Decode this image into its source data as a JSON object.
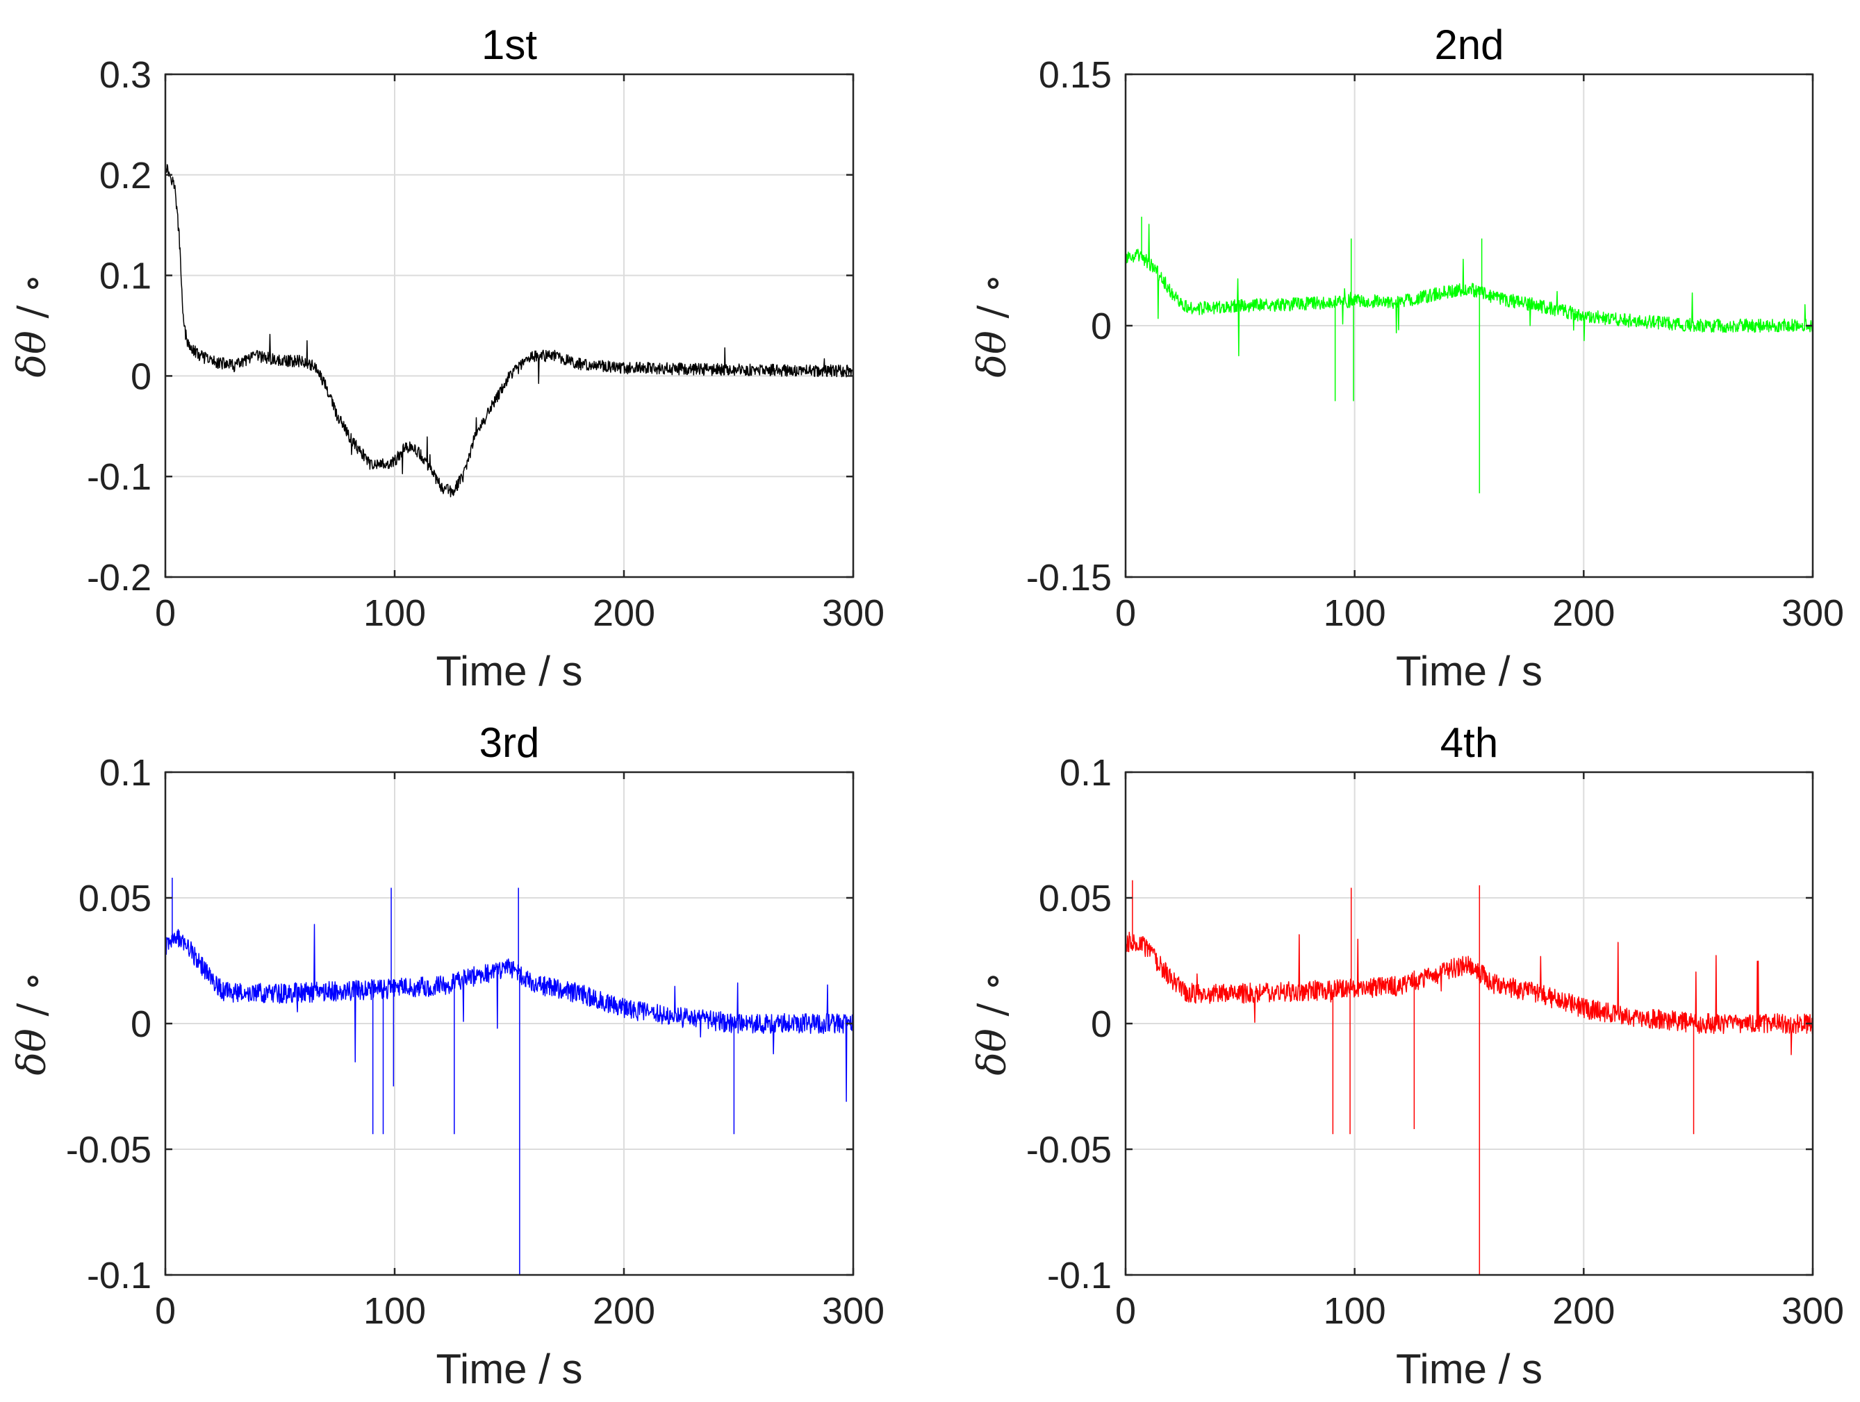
{
  "chart_data": [
    {
      "type": "line",
      "title": "1st",
      "xlabel": "Time / s",
      "ylabel": "δθ / ∘",
      "xlim": [
        0,
        300
      ],
      "ylim": [
        -0.2,
        0.3
      ],
      "xticks": [
        0,
        100,
        200,
        300
      ],
      "xtick_labels": [
        "0",
        "100",
        "200",
        "300"
      ],
      "yticks": [
        -0.2,
        -0.1,
        0,
        0.1,
        0.2,
        0.3
      ],
      "ytick_labels": [
        "-0.2",
        "-0.1",
        "0",
        "0.1",
        "0.2",
        "0.3"
      ],
      "grid": true,
      "color": "#000000",
      "noise": 0.006,
      "spike_rate": 0.01,
      "spike_scale": 0.03,
      "series": [
        {
          "name": "1st",
          "x": [
            0,
            2,
            4,
            6,
            8,
            10,
            15,
            20,
            30,
            40,
            50,
            60,
            65,
            70,
            75,
            80,
            90,
            100,
            105,
            110,
            115,
            120,
            125,
            130,
            135,
            140,
            145,
            150,
            160,
            170,
            180,
            200,
            250,
            300
          ],
          "y": [
            0.21,
            0.2,
            0.19,
            0.14,
            0.05,
            0.03,
            0.02,
            0.015,
            0.01,
            0.02,
            0.015,
            0.015,
            0.01,
            -0.01,
            -0.04,
            -0.06,
            -0.09,
            -0.085,
            -0.07,
            -0.075,
            -0.09,
            -0.11,
            -0.115,
            -0.1,
            -0.06,
            -0.04,
            -0.02,
            0.0,
            0.02,
            0.02,
            0.012,
            0.008,
            0.006,
            0.005
          ]
        }
      ]
    },
    {
      "type": "line",
      "title": "2nd",
      "xlabel": "Time / s",
      "ylabel": "δθ / ∘",
      "xlim": [
        0,
        300
      ],
      "ylim": [
        -0.15,
        0.15
      ],
      "xticks": [
        0,
        100,
        200,
        300
      ],
      "xtick_labels": [
        "0",
        "100",
        "200",
        "300"
      ],
      "yticks": [
        -0.15,
        0,
        0.15
      ],
      "ytick_labels": [
        "-0.15",
        "0",
        "0.15"
      ],
      "grid": true,
      "color": "#00ff00",
      "noise": 0.004,
      "spike_rate": 0.012,
      "spike_scale": 0.03,
      "series": [
        {
          "name": "2nd",
          "x": [
            0,
            5,
            10,
            15,
            20,
            25,
            30,
            50,
            80,
            100,
            120,
            140,
            150,
            155,
            160,
            180,
            200,
            220,
            250,
            300
          ],
          "y": [
            0.04,
            0.042,
            0.038,
            0.03,
            0.02,
            0.013,
            0.01,
            0.012,
            0.013,
            0.015,
            0.014,
            0.02,
            0.022,
            0.02,
            0.017,
            0.012,
            0.006,
            0.003,
            0.0,
            0.0
          ]
        }
      ],
      "spikes": [
        {
          "x": 154.5,
          "y": -0.1
        },
        {
          "x": 98.5,
          "y": 0.052
        },
        {
          "x": 99.5,
          "y": -0.045
        },
        {
          "x": 155.5,
          "y": 0.052
        },
        {
          "x": 91.5,
          "y": -0.045
        },
        {
          "x": 7,
          "y": 0.065
        }
      ]
    },
    {
      "type": "line",
      "title": "3rd",
      "xlabel": "Time / s",
      "ylabel": "δθ / ∘",
      "xlim": [
        0,
        300
      ],
      "ylim": [
        -0.1,
        0.1
      ],
      "xticks": [
        0,
        100,
        200,
        300
      ],
      "xtick_labels": [
        "0",
        "100",
        "200",
        "300"
      ],
      "yticks": [
        -0.1,
        -0.05,
        0,
        0.05,
        0.1
      ],
      "ytick_labels": [
        "-0.1",
        "-0.05",
        "0",
        "0.05",
        "0.1"
      ],
      "grid": true,
      "color": "#0000ff",
      "noise": 0.004,
      "spike_rate": 0.012,
      "spike_scale": 0.03,
      "series": [
        {
          "name": "3rd",
          "x": [
            0,
            5,
            10,
            15,
            20,
            25,
            30,
            50,
            80,
            100,
            120,
            140,
            150,
            155,
            160,
            180,
            200,
            220,
            250,
            300
          ],
          "y": [
            0.033,
            0.034,
            0.03,
            0.024,
            0.018,
            0.013,
            0.012,
            0.012,
            0.013,
            0.014,
            0.015,
            0.02,
            0.022,
            0.019,
            0.016,
            0.012,
            0.006,
            0.003,
            0.0,
            0.0
          ]
        }
      ],
      "spikes": [
        {
          "x": 154.5,
          "y": -0.1
        },
        {
          "x": 98.5,
          "y": 0.054
        },
        {
          "x": 99.5,
          "y": -0.025
        },
        {
          "x": 154,
          "y": 0.054
        },
        {
          "x": 90.5,
          "y": -0.044
        },
        {
          "x": 95,
          "y": -0.044
        },
        {
          "x": 126,
          "y": -0.044
        },
        {
          "x": 248,
          "y": -0.044
        },
        {
          "x": 3,
          "y": 0.058
        }
      ]
    },
    {
      "type": "line",
      "title": "4th",
      "xlabel": "Time / s",
      "ylabel": "δθ / ∘",
      "xlim": [
        0,
        300
      ],
      "ylim": [
        -0.1,
        0.1
      ],
      "xticks": [
        0,
        100,
        200,
        300
      ],
      "xtick_labels": [
        "0",
        "100",
        "200",
        "300"
      ],
      "yticks": [
        -0.1,
        -0.05,
        0,
        0.05,
        0.1
      ],
      "ytick_labels": [
        "-0.1",
        "-0.05",
        "0",
        "0.05",
        "0.1"
      ],
      "grid": true,
      "color": "#ff0000",
      "noise": 0.004,
      "spike_rate": 0.012,
      "spike_scale": 0.03,
      "series": [
        {
          "name": "4th",
          "x": [
            0,
            5,
            10,
            15,
            20,
            25,
            30,
            50,
            80,
            100,
            120,
            140,
            150,
            155,
            160,
            180,
            200,
            220,
            250,
            300
          ],
          "y": [
            0.032,
            0.033,
            0.029,
            0.023,
            0.018,
            0.013,
            0.012,
            0.012,
            0.013,
            0.014,
            0.015,
            0.021,
            0.024,
            0.02,
            0.016,
            0.012,
            0.006,
            0.003,
            0.0,
            0.0
          ]
        }
      ],
      "spikes": [
        {
          "x": 154.5,
          "y": -0.1
        },
        {
          "x": 98.5,
          "y": 0.054
        },
        {
          "x": 154.5,
          "y": 0.055
        },
        {
          "x": 90.5,
          "y": -0.044
        },
        {
          "x": 98,
          "y": -0.044
        },
        {
          "x": 126,
          "y": -0.042
        },
        {
          "x": 248,
          "y": -0.044
        },
        {
          "x": 3,
          "y": 0.057
        }
      ]
    }
  ]
}
